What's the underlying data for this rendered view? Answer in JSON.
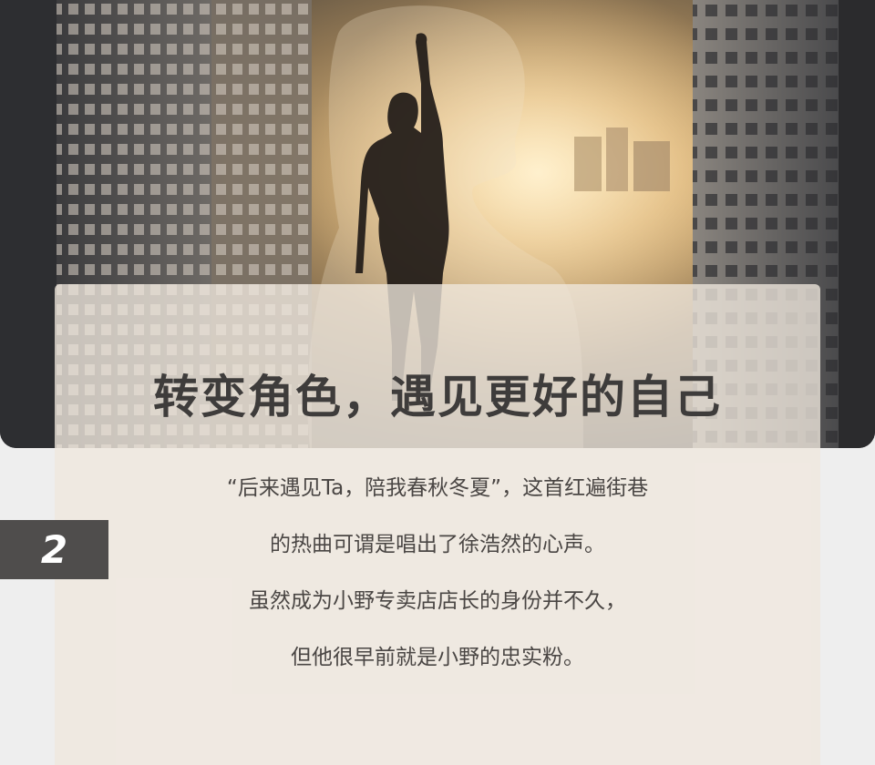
{
  "hero": {
    "image": "city-silhouette-double-exposure"
  },
  "card": {
    "headline": "转变角色，遇见更好的自己",
    "lines": [
      "“后来遇见Ta，陪我春秋冬夏”，这首红遍街巷",
      "的热曲可谓是唱出了徐浩然的心声。",
      "虽然成为小野专卖店店长的身份并不久，",
      "但他很早前就是小野的忠实粉。"
    ]
  },
  "section_badge": {
    "number": "2"
  },
  "colors": {
    "badge_bg": "#4f4d4c",
    "headline": "#3e3c3b",
    "card_bg": "#f0e8de",
    "page_bg": "#eeeeee"
  }
}
